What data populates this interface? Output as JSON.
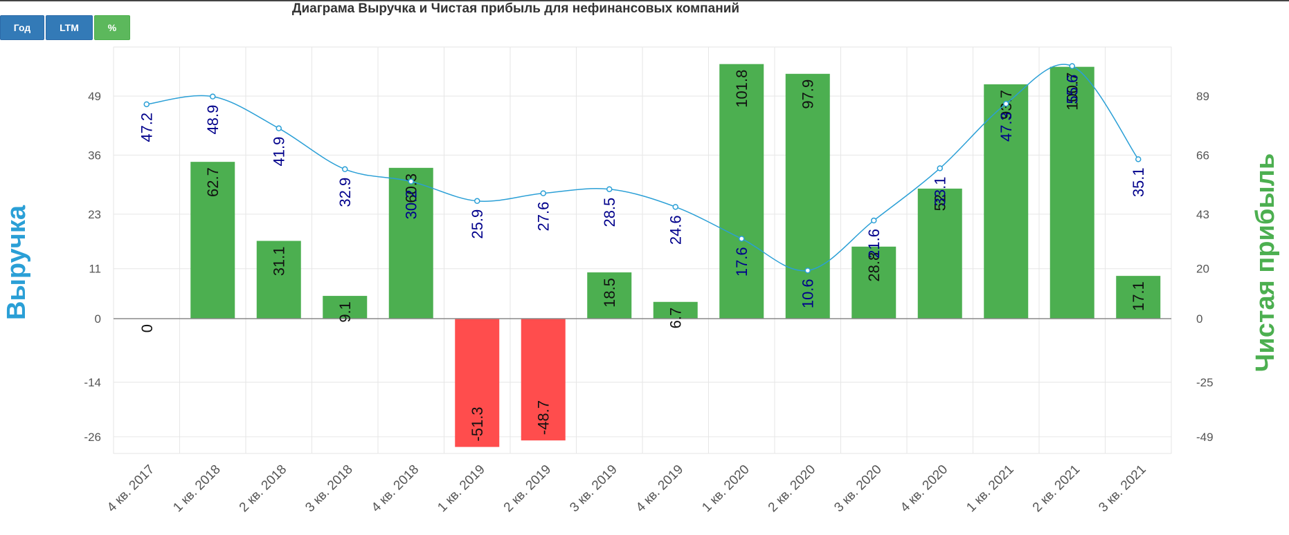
{
  "title": "Диаграма Выручка и Чистая прибыль для нефинансовых компаний",
  "buttons": {
    "year": "Год",
    "ltm": "LTM",
    "percent": "%"
  },
  "colors": {
    "line": "#2a9fd6",
    "line_label": "#00008b",
    "bar_positive": "#4caf50",
    "bar_negative": "#ff4d4d",
    "left_axis_title": "#2a9fd6",
    "right_axis_title": "#4caf50",
    "grid": "#e6e6e6"
  },
  "chart_data": {
    "type": "bar+line",
    "title": "Диаграма Выручка и Чистая прибыль для нефинансовых компаний",
    "categories": [
      "4 кв. 2017",
      "1 кв. 2018",
      "2 кв. 2018",
      "3 кв. 2018",
      "4 кв. 2018",
      "1 кв. 2019",
      "2 кв. 2019",
      "3 кв. 2019",
      "4 кв. 2019",
      "1 кв. 2020",
      "2 кв. 2020",
      "3 кв. 2020",
      "4 кв. 2020",
      "1 кв. 2021",
      "2 кв. 2021",
      "3 кв. 2021"
    ],
    "left_axis": {
      "title": "Выручка",
      "ticks": [
        "49",
        "36",
        "23",
        "11",
        "0",
        "-14",
        "-26"
      ]
    },
    "right_axis": {
      "title": "Чистая прибыль",
      "ticks": [
        "89",
        "66",
        "43",
        "20",
        "0",
        "-25",
        "-49"
      ]
    },
    "series": [
      {
        "name": "Выручка",
        "type": "line",
        "axis": "left",
        "values": [
          47.2,
          48.9,
          41.9,
          32.9,
          30.2,
          25.9,
          27.6,
          28.5,
          24.6,
          17.6,
          10.6,
          21.6,
          33.1,
          47.3,
          55.6,
          35.1
        ]
      },
      {
        "name": "Чистая прибыль",
        "type": "bar",
        "axis": "right",
        "values": [
          0,
          62.7,
          31.1,
          9.1,
          60.3,
          -51.3,
          -48.7,
          18.5,
          6.7,
          101.8,
          97.9,
          28.8,
          52.0,
          93.7,
          100.7,
          17.1
        ]
      }
    ]
  }
}
